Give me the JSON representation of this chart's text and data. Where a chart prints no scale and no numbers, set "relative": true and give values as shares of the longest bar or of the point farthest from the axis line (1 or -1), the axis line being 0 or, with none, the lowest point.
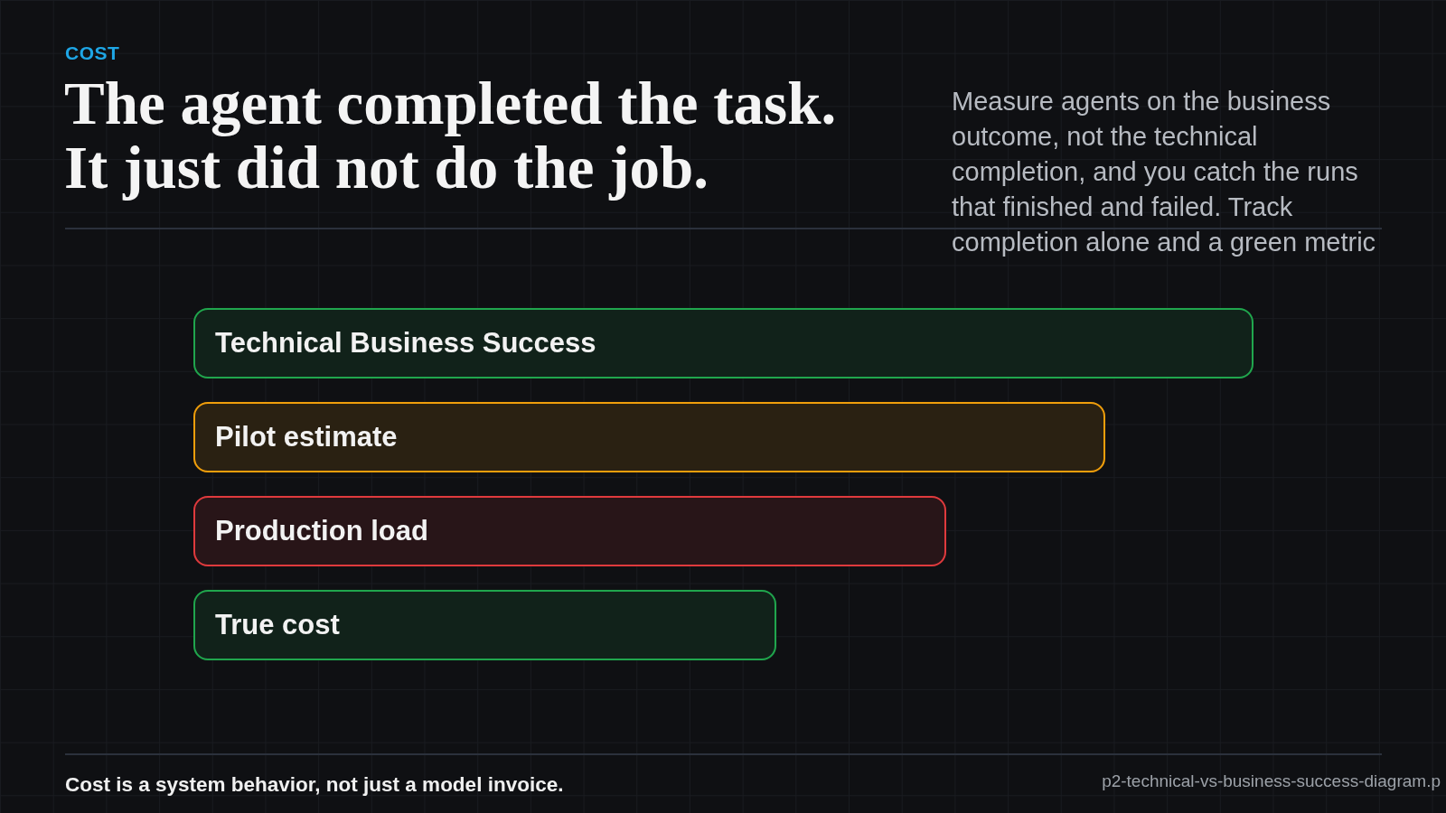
{
  "chart_data": {
    "type": "bar",
    "orientation": "horizontal",
    "relative": true,
    "title": "The agent completed the task. It just did not do the job.",
    "subtitle": "Measure agents on the business outcome, not the technical completion, and you catch the runs that finished and failed. Track completion alone and a green metric",
    "annotations": [
      "COST",
      "Cost is a system behavior, not just a model invoice.",
      "p2-technical-vs-business-success-diagram.p"
    ],
    "categories": [
      "Technical Business Success",
      "Pilot estimate",
      "Production load",
      "True cost"
    ],
    "values": [
      1,
      0.86,
      0.71,
      0.55
    ],
    "colors": [
      "#11221a",
      "#2a2112",
      "#281518",
      "#11221a"
    ]
  }
}
